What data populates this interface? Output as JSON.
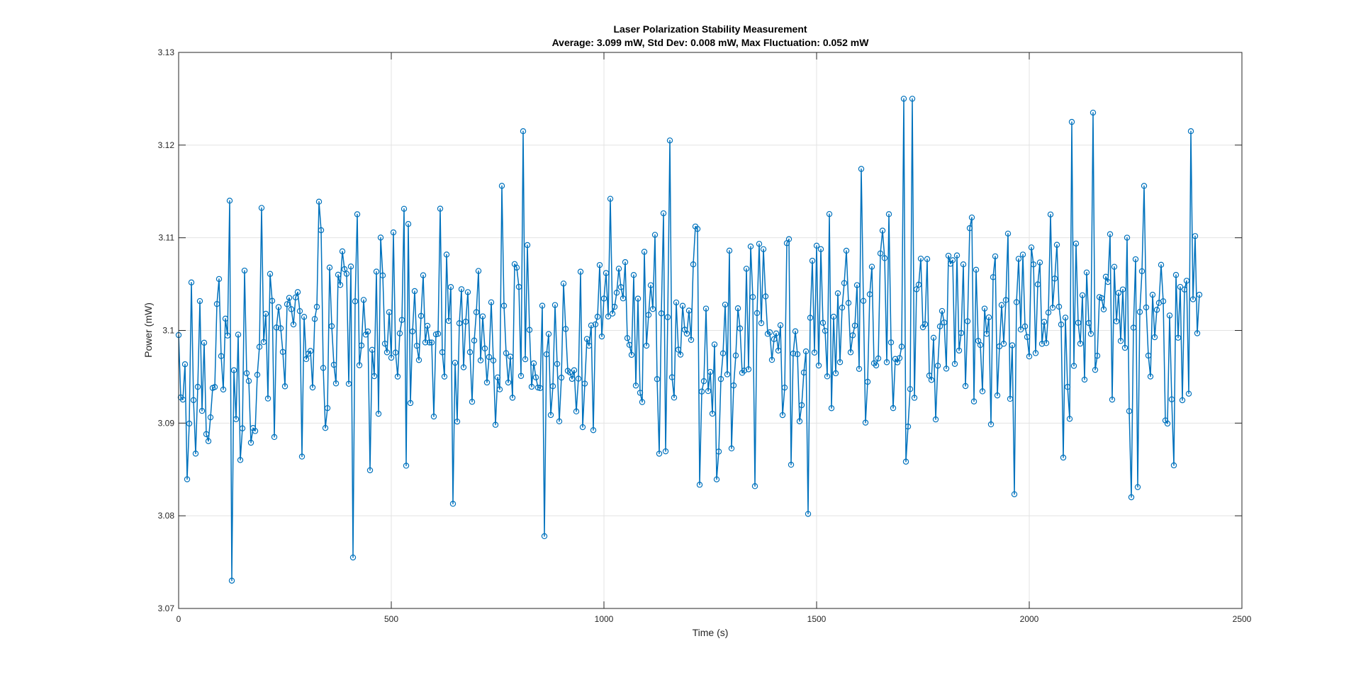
{
  "chart_data": {
    "type": "line",
    "title": "Laser Polarization Stability Measurement",
    "subtitle": "Average: 3.099 mW, Std Dev: 0.008 mW, Max Fluctuation: 0.052 mW",
    "xlabel": "Time (s)",
    "ylabel": "Power (mW)",
    "xlim": [
      0,
      2500
    ],
    "ylim": [
      3.07,
      3.13
    ],
    "xticks": [
      0,
      500,
      1000,
      1500,
      2000,
      2500
    ],
    "xtick_labels": [
      "0",
      "500",
      "1000",
      "1500",
      "2000",
      "2500"
    ],
    "yticks": [
      3.07,
      3.08,
      3.09,
      3.1,
      3.11,
      3.12,
      3.13
    ],
    "ytick_labels": [
      "3.07",
      "3.08",
      "3.09",
      "3.1",
      "3.11",
      "3.12",
      "3.13"
    ],
    "grid": true,
    "marker": "circle",
    "color": "#0072BD",
    "series": [
      {
        "x_start": 0,
        "x_end": 2400,
        "x_step": 5,
        "trend": [
          [
            0,
            3.095
          ],
          [
            300,
            3.0975
          ],
          [
            800,
            3.099
          ],
          [
            1500,
            3.0995
          ],
          [
            2000,
            3.1005
          ],
          [
            2400,
            3.1025
          ]
        ],
        "noise_std": 0.008,
        "seed": 17,
        "notable_points": [
          {
            "x": 120,
            "y": 3.114
          },
          {
            "x": 125,
            "y": 3.073
          },
          {
            "x": 410,
            "y": 3.0755
          },
          {
            "x": 810,
            "y": 3.1215
          },
          {
            "x": 860,
            "y": 3.0778
          },
          {
            "x": 1155,
            "y": 3.1205
          },
          {
            "x": 1480,
            "y": 3.0802
          },
          {
            "x": 1705,
            "y": 3.125
          },
          {
            "x": 1725,
            "y": 3.125
          },
          {
            "x": 2100,
            "y": 3.1225
          },
          {
            "x": 2150,
            "y": 3.1235
          },
          {
            "x": 2240,
            "y": 3.082
          },
          {
            "x": 2380,
            "y": 3.1215
          }
        ]
      }
    ]
  }
}
